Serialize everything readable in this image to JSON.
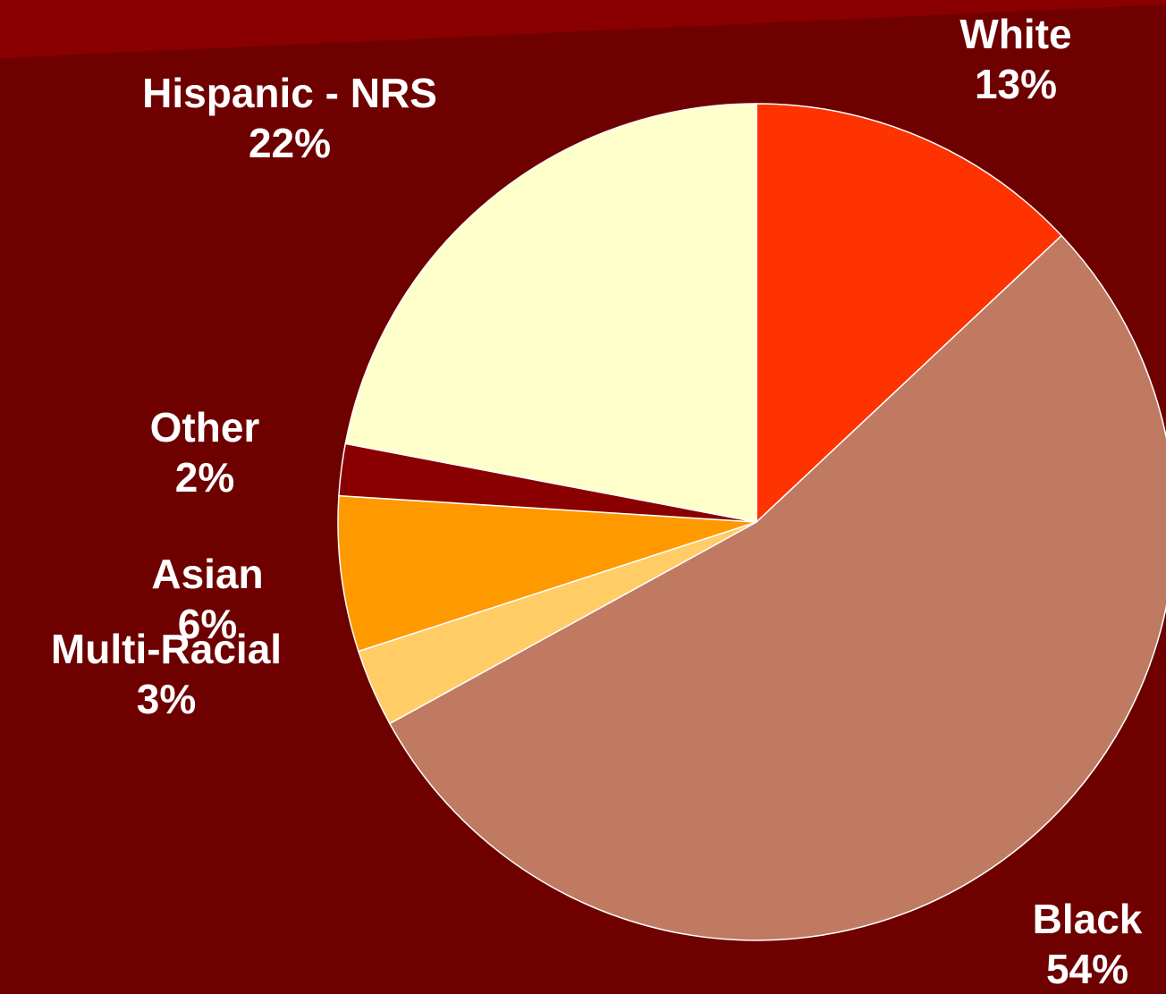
{
  "colors": {
    "background": "#6e0000",
    "band": "#8a0000",
    "slice_border": "#ffffff"
  },
  "chart_data": {
    "type": "pie",
    "title": "",
    "start_angle_deg": 0,
    "direction": "clockwise",
    "slices": [
      {
        "label": "White",
        "value": 13,
        "display": "13%",
        "color": "#ff3300"
      },
      {
        "label": "Black",
        "value": 54,
        "display": "54%",
        "color": "#c07a62"
      },
      {
        "label": "Multi-Racial",
        "value": 3,
        "display": "3%",
        "color": "#ffcc66"
      },
      {
        "label": "Asian",
        "value": 6,
        "display": "6%",
        "color": "#ff9900"
      },
      {
        "label": "Other",
        "value": 2,
        "display": "2%",
        "color": "#8a0000"
      },
      {
        "label": "Hispanic - NRS",
        "value": 22,
        "display": "22%",
        "color": "#ffffcc"
      }
    ]
  }
}
